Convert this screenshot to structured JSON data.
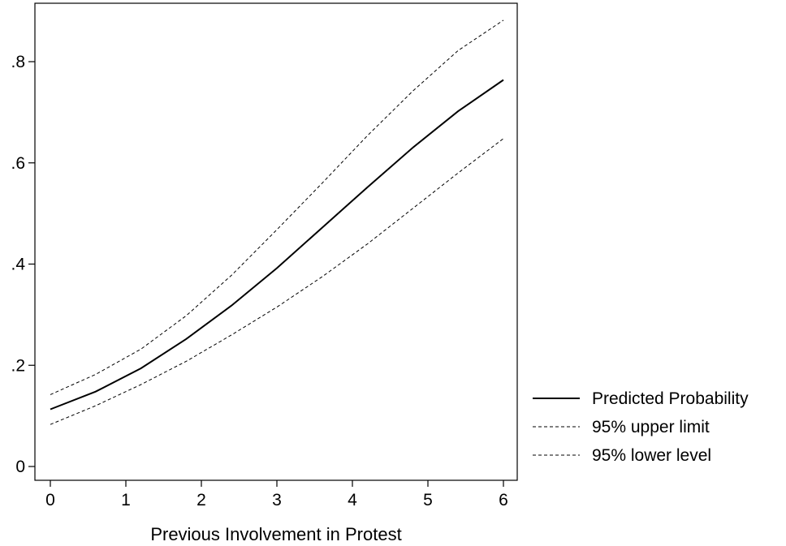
{
  "chart_data": {
    "type": "line",
    "title": "",
    "xlabel": "Previous Involvement in Protest",
    "ylabel": "",
    "xlim": [
      0,
      6
    ],
    "ylim": [
      0,
      0.88
    ],
    "x_ticks": [
      0,
      1,
      2,
      3,
      4,
      5,
      6
    ],
    "x_tick_labels": [
      "0",
      "1",
      "2",
      "3",
      "4",
      "5",
      "6"
    ],
    "y_ticks": [
      0,
      0.2,
      0.4,
      0.6,
      0.8
    ],
    "y_tick_labels": [
      "0",
      ".2",
      ".4",
      ".6",
      ".8"
    ],
    "grid": false,
    "legend_position": "right",
    "x": [
      0,
      0.6,
      1.2,
      1.8,
      2.4,
      3.0,
      3.6,
      4.2,
      4.8,
      5.4,
      6.0
    ],
    "series": [
      {
        "name": "Predicted Probability",
        "style": "solid",
        "values": [
          0.113,
          0.148,
          0.194,
          0.252,
          0.318,
          0.392,
          0.472,
          0.552,
          0.63,
          0.702,
          0.764
        ]
      },
      {
        "name": "95% upper limit",
        "style": "dashed",
        "values": [
          0.142,
          0.182,
          0.232,
          0.298,
          0.378,
          0.468,
          0.56,
          0.654,
          0.742,
          0.822,
          0.882
        ]
      },
      {
        "name": "95% lower level",
        "style": "dashed",
        "values": [
          0.083,
          0.12,
          0.162,
          0.208,
          0.26,
          0.315,
          0.375,
          0.44,
          0.51,
          0.58,
          0.648
        ]
      }
    ]
  }
}
